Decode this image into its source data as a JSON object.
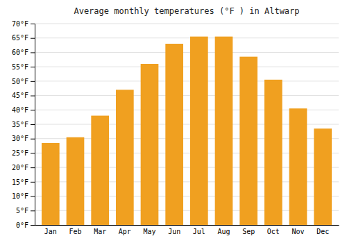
{
  "chart_data": {
    "type": "bar",
    "title": "Average monthly temperatures (°F ) in Altwarp",
    "categories": [
      "Jan",
      "Feb",
      "Mar",
      "Apr",
      "May",
      "Jun",
      "Jul",
      "Aug",
      "Sep",
      "Oct",
      "Nov",
      "Dec"
    ],
    "values": [
      28.5,
      30.5,
      38,
      47,
      56,
      63,
      65.5,
      65.5,
      58.5,
      50.5,
      40.5,
      33.5
    ],
    "color": "#F0A020",
    "ylim": [
      0,
      70
    ],
    "yticks": [
      {
        "value": 0,
        "label": "0°F"
      },
      {
        "value": 5,
        "label": "5°F"
      },
      {
        "value": 10,
        "label": "10°F"
      },
      {
        "value": 15,
        "label": "15°F"
      },
      {
        "value": 20,
        "label": "20°F"
      },
      {
        "value": 25,
        "label": "25°F"
      },
      {
        "value": 30,
        "label": "30°F"
      },
      {
        "value": 35,
        "label": "35°F"
      },
      {
        "value": 40,
        "label": "40°F"
      },
      {
        "value": 45,
        "label": "45°F"
      },
      {
        "value": 50,
        "label": "50°F"
      },
      {
        "value": 55,
        "label": "55°F"
      },
      {
        "value": 60,
        "label": "60°F"
      },
      {
        "value": 65,
        "label": "65°F"
      },
      {
        "value": 70,
        "label": "70°F"
      }
    ],
    "grid": true
  }
}
